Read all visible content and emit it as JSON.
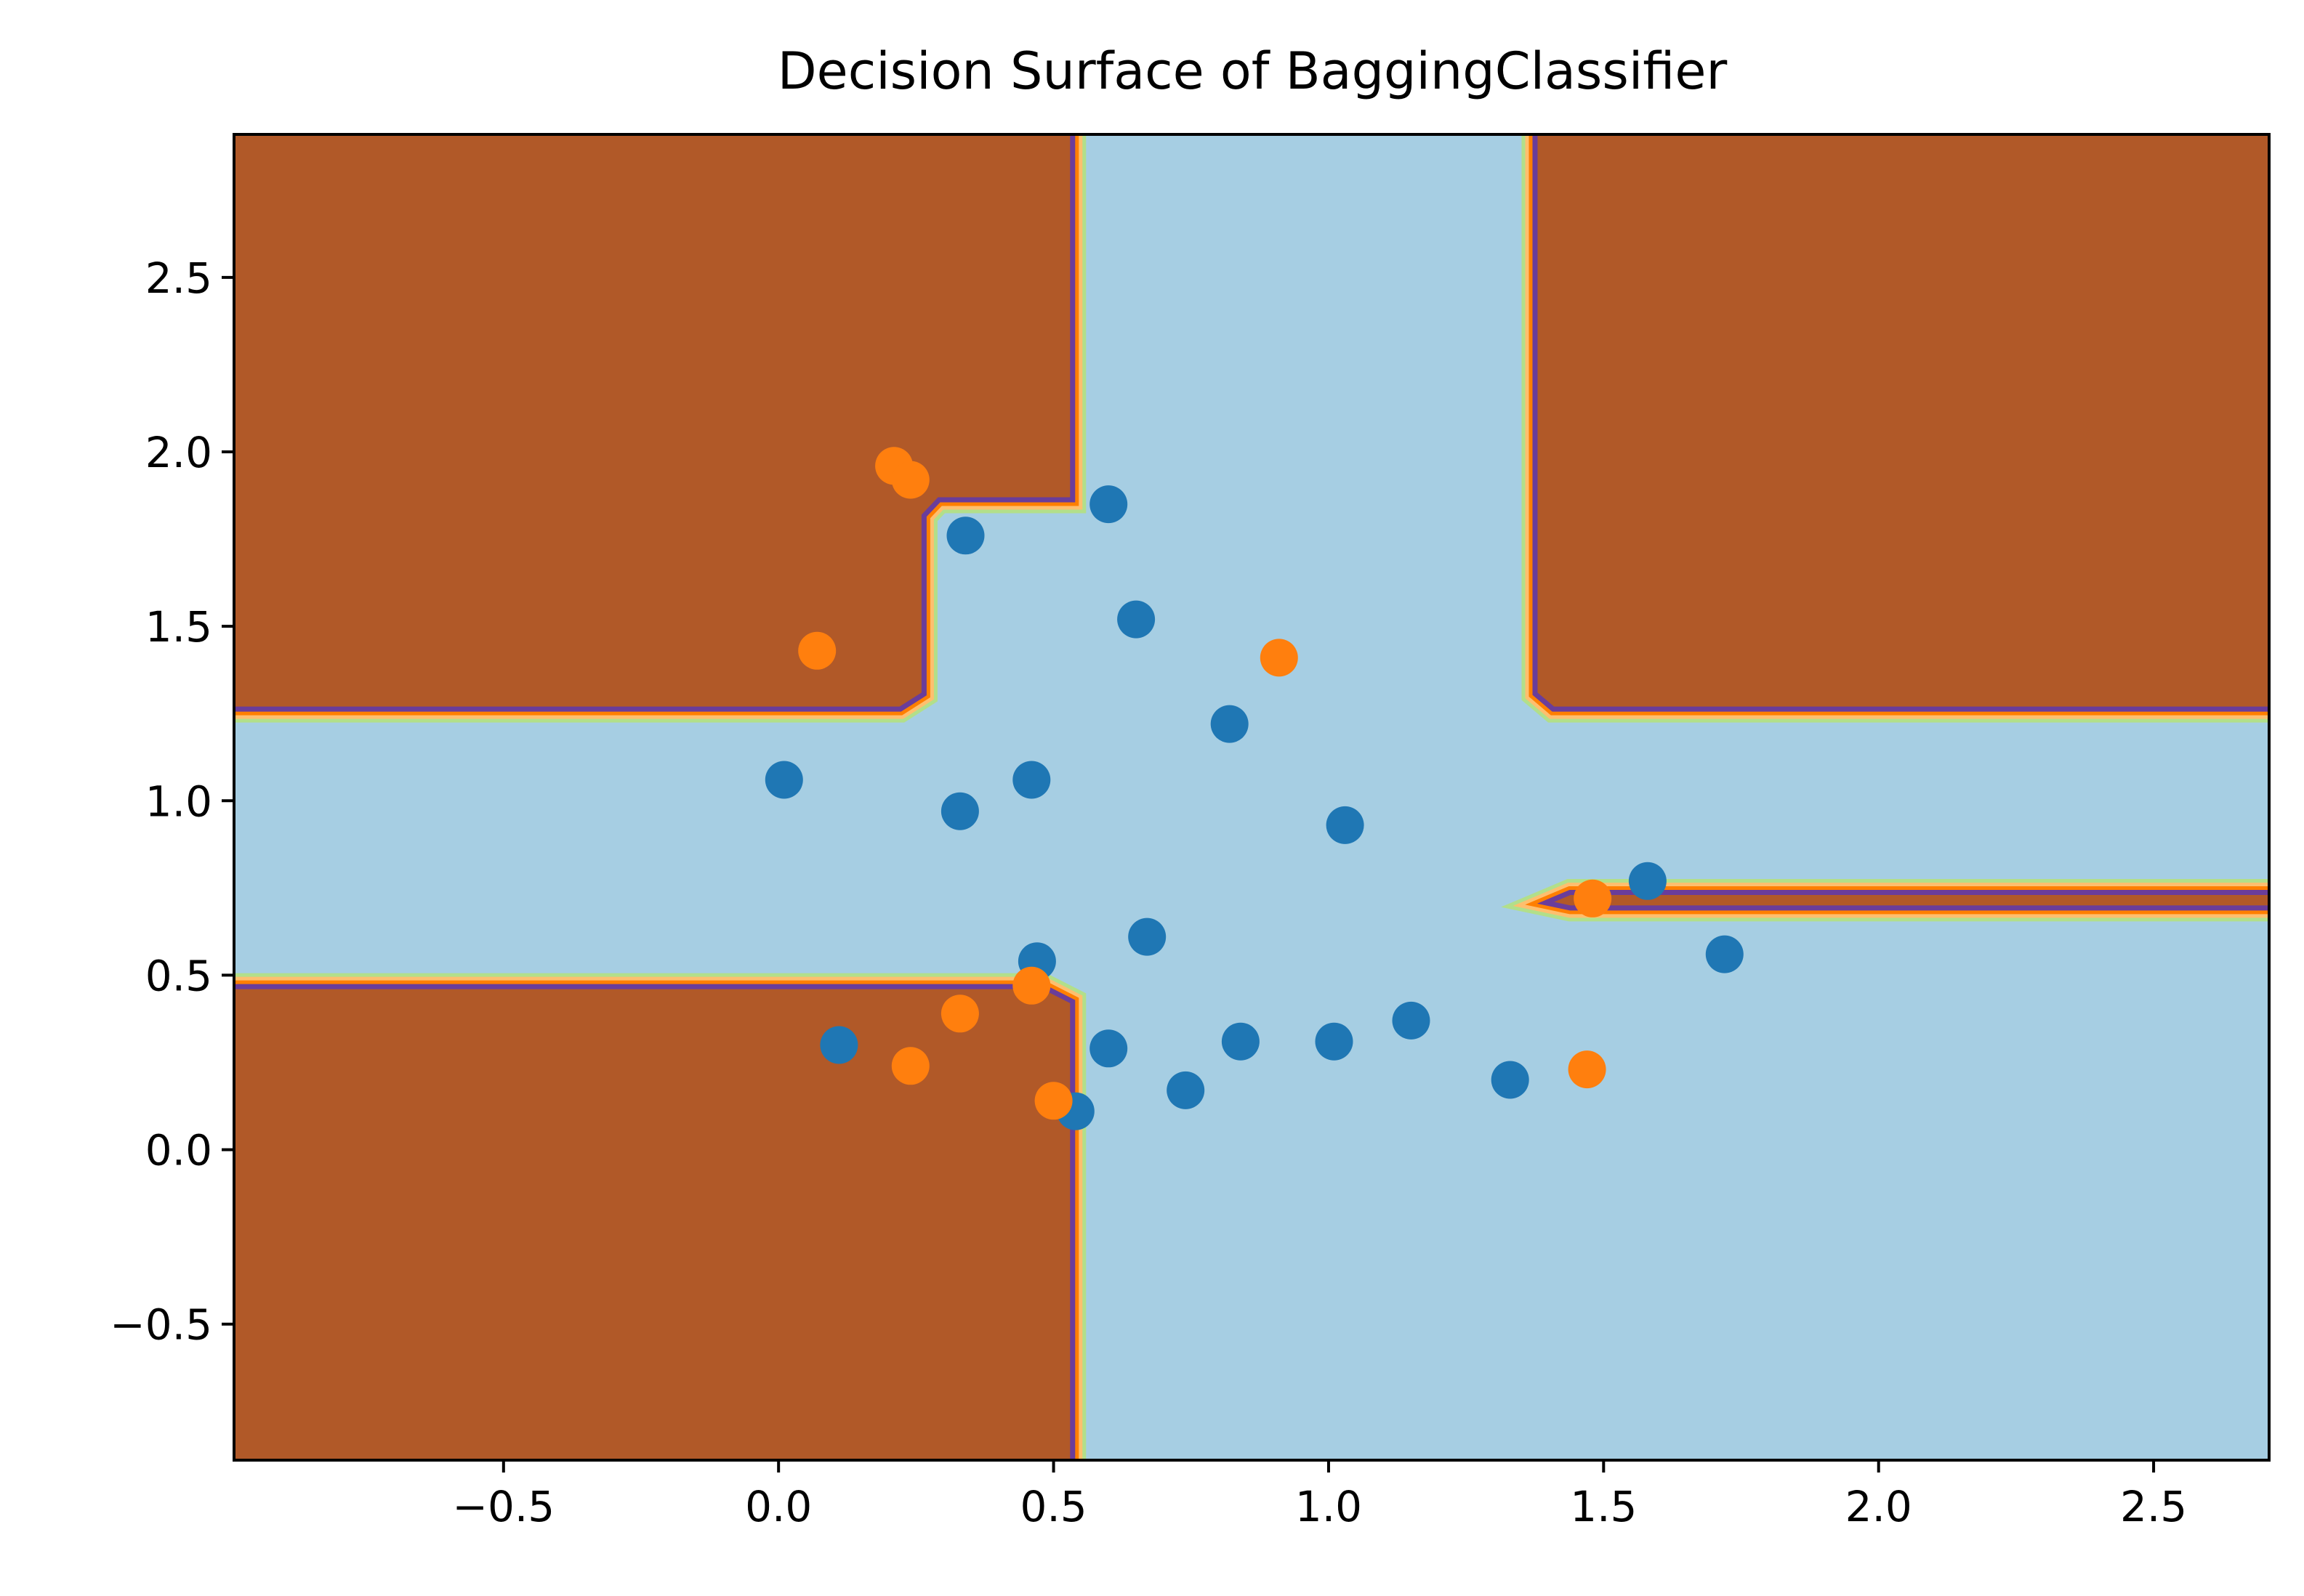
{
  "chart_data": {
    "type": "scatter",
    "title": "Decision Surface of BaggingClassifier",
    "xlabel": "",
    "ylabel": "",
    "xlim": [
      -0.99,
      2.71
    ],
    "ylim": [
      -0.89,
      2.91
    ],
    "x_ticks": [
      -0.5,
      0.0,
      0.5,
      1.0,
      1.5,
      2.0,
      2.5
    ],
    "x_tick_labels": [
      "−0.5",
      "0.0",
      "0.5",
      "1.0",
      "1.5",
      "2.0",
      "2.5"
    ],
    "y_ticks": [
      -0.5,
      0.0,
      0.5,
      1.0,
      1.5,
      2.0,
      2.5
    ],
    "y_tick_labels": [
      "−0.5",
      "0.0",
      "0.5",
      "1.0",
      "1.5",
      "2.0",
      "2.5"
    ],
    "grid": false,
    "legend": "none",
    "colors": {
      "class_0_point": "#1f77b4",
      "class_1_point": "#ff7f0e",
      "surface_class_0": "#a6cee3",
      "surface_class_1": "#b15928",
      "contour_bands": [
        "#b2df8a",
        "#fdbf6f",
        "#ff7f00",
        "#6a3d9a"
      ]
    },
    "decision_regions_class_1": [
      [
        [
          -0.99,
          1.27
        ],
        [
          0.22,
          1.27
        ],
        [
          0.26,
          1.31
        ],
        [
          0.26,
          1.82
        ],
        [
          0.29,
          1.87
        ],
        [
          0.53,
          1.87
        ],
        [
          0.53,
          2.91
        ],
        [
          -0.99,
          2.91
        ]
      ],
      [
        [
          1.38,
          1.31
        ],
        [
          1.41,
          1.27
        ],
        [
          2.71,
          1.27
        ],
        [
          2.71,
          2.91
        ],
        [
          1.38,
          2.91
        ]
      ],
      [
        [
          -0.99,
          -0.89
        ],
        [
          0.53,
          -0.89
        ],
        [
          0.53,
          0.42
        ],
        [
          0.48,
          0.46
        ],
        [
          -0.99,
          0.46
        ]
      ],
      [
        [
          1.41,
          0.71
        ],
        [
          1.44,
          0.73
        ],
        [
          2.71,
          0.73
        ],
        [
          2.71,
          0.7
        ],
        [
          1.44,
          0.7
        ]
      ]
    ],
    "series": [
      {
        "class": 0,
        "x": [
          0.6,
          0.34,
          0.65,
          0.82,
          0.01,
          0.33,
          0.46,
          1.03,
          1.58,
          1.72,
          0.47,
          0.67,
          0.11,
          0.6,
          0.54,
          0.74,
          0.84,
          1.01,
          1.15,
          1.33
        ],
        "y": [
          1.85,
          1.76,
          1.52,
          1.22,
          1.06,
          0.97,
          1.06,
          0.93,
          0.77,
          0.56,
          0.54,
          0.61,
          0.3,
          0.29,
          0.11,
          0.17,
          0.31,
          0.31,
          0.37,
          0.2
        ]
      },
      {
        "class": 1,
        "x": [
          0.21,
          0.24,
          0.07,
          0.91,
          1.48,
          0.46,
          0.33,
          0.24,
          0.5,
          1.47
        ],
        "y": [
          1.96,
          1.92,
          1.43,
          1.41,
          0.72,
          0.47,
          0.39,
          0.24,
          0.14,
          0.23
        ]
      }
    ]
  }
}
